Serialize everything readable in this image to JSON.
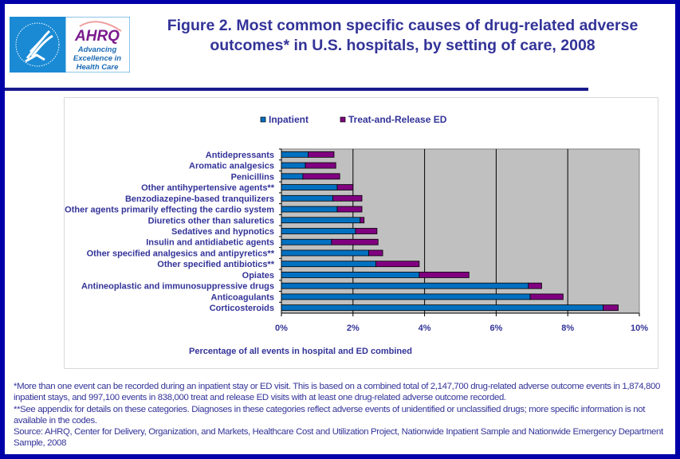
{
  "header": {
    "title": "Figure 2. Most common specific causes of drug-related adverse outcomes* in U.S. hospitals, by setting of care, 2008",
    "logo_hhs": "Department of Health & Human Services USA",
    "logo_ahrq": "AHRQ",
    "logo_tagline": "Advancing Excellence in Health Care"
  },
  "colors": {
    "inpatient": "#0070C0",
    "ed": "#800080",
    "plot_bg": "#C0C0C0",
    "text": "#333399",
    "frame": "#0000A8"
  },
  "chart_data": {
    "type": "bar",
    "orientation": "horizontal",
    "stacked": true,
    "title": "",
    "xlabel": "Percentage of all events in hospital and ED combined",
    "ylabel": "",
    "xlim": [
      0,
      10
    ],
    "xticks": [
      "0%",
      "2%",
      "4%",
      "6%",
      "8%",
      "10%"
    ],
    "grid": true,
    "legend": "top",
    "categories": [
      "Antidepressants",
      "Aromatic analgesics",
      "Penicillins",
      "Other antihypertensive agents**",
      "Benzodiazepine-based tranquilizers",
      "Other agents primarily effecting the cardio system",
      "Diuretics other than saluretics",
      "Sedatives and hypnotics",
      "Insulin and antidiabetic agents",
      "Other specified analgesics and antipyretics**",
      "Other specified antibiotics**",
      "Opiates",
      "Antineoplastic and immunosuppressive drugs",
      "Anticoagulants",
      "Corticosteroids"
    ],
    "series": [
      {
        "name": "Inpatient",
        "values": [
          0.75,
          0.67,
          0.6,
          1.56,
          1.44,
          1.56,
          2.2,
          2.07,
          1.4,
          2.44,
          2.64,
          3.85,
          6.9,
          6.95,
          8.99
        ]
      },
      {
        "name": "Treat-and-Release ED",
        "values": [
          0.72,
          0.85,
          1.03,
          0.44,
          0.81,
          0.69,
          0.11,
          0.6,
          1.3,
          0.39,
          1.21,
          1.39,
          0.37,
          0.92,
          0.42
        ]
      }
    ]
  },
  "footnotes": [
    "*More than one event can be recorded during an inpatient stay or ED visit. This is based on a combined total of 2,147,700 drug-related adverse outcome events in 1,874,800 inpatient stays, and 997,100 events in 838,000 treat and release ED visits with at least one drug-related adverse outcome recorded.",
    "**See appendix for details on these categories. Diagnoses in these categories reflect adverse events of unidentified or unclassified drugs; more specific information is not available in the codes.",
    "Source: AHRQ,  Center for Delivery, Organization, and Markets, Healthcare Cost and Utilization Project, Nationwide Inpatient Sample and Nationwide Emergency Department Sample, 2008"
  ]
}
